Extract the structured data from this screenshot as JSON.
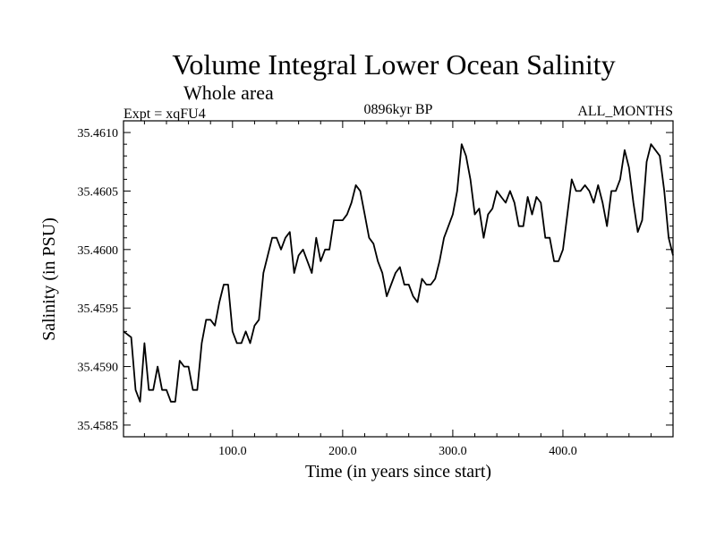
{
  "chart_data": {
    "type": "line",
    "title": "Volume Integral Lower Ocean Salinity",
    "subtitle": "Whole area",
    "header_left": "Expt = xqFU4",
    "header_center": "0896kyr BP",
    "header_right": "ALL_MONTHS",
    "xlabel": "Time (in years since start)",
    "ylabel": "Salinity (in PSU)",
    "xlim": [
      1,
      500
    ],
    "ylim": [
      35.4584,
      35.4611
    ],
    "xticks": [
      100,
      200,
      300,
      400
    ],
    "xtick_labels": [
      "100.0",
      "200.0",
      "300.0",
      "400.0"
    ],
    "yticks": [
      35.4585,
      35.459,
      35.4595,
      35.46,
      35.4605,
      35.461
    ],
    "ytick_labels": [
      "35.4585",
      "35.4590",
      "35.4595",
      "35.4600",
      "35.4605",
      "35.4610"
    ],
    "series": [
      {
        "name": "Salinity",
        "x": [
          1,
          8,
          12,
          16,
          20,
          24,
          28,
          32,
          36,
          40,
          44,
          48,
          52,
          56,
          60,
          64,
          68,
          72,
          76,
          80,
          84,
          88,
          92,
          96,
          100,
          104,
          108,
          112,
          116,
          120,
          124,
          128,
          132,
          136,
          140,
          144,
          148,
          152,
          156,
          160,
          164,
          168,
          172,
          176,
          180,
          184,
          188,
          192,
          196,
          200,
          204,
          208,
          212,
          216,
          220,
          224,
          228,
          232,
          236,
          240,
          244,
          248,
          252,
          256,
          260,
          264,
          268,
          272,
          276,
          280,
          284,
          288,
          292,
          296,
          300,
          304,
          308,
          312,
          316,
          320,
          324,
          328,
          332,
          336,
          340,
          344,
          348,
          352,
          356,
          360,
          364,
          368,
          372,
          376,
          380,
          384,
          388,
          392,
          396,
          400,
          404,
          408,
          412,
          416,
          420,
          424,
          428,
          432,
          436,
          440,
          444,
          448,
          452,
          456,
          460,
          464,
          468,
          472,
          476,
          480,
          484,
          488,
          492,
          496,
          500
        ],
        "y": [
          35.4593,
          35.45925,
          35.4588,
          35.4587,
          35.4592,
          35.4588,
          35.4588,
          35.459,
          35.4588,
          35.4588,
          35.4587,
          35.4587,
          35.45905,
          35.459,
          35.459,
          35.4588,
          35.4588,
          35.4592,
          35.4594,
          35.4594,
          35.45935,
          35.45955,
          35.4597,
          35.4597,
          35.4593,
          35.4592,
          35.4592,
          35.4593,
          35.4592,
          35.45935,
          35.4594,
          35.4598,
          35.45995,
          35.4601,
          35.4601,
          35.46,
          35.4601,
          35.46015,
          35.4598,
          35.45995,
          35.46,
          35.4599,
          35.4598,
          35.4601,
          35.4599,
          35.46,
          35.46,
          35.46025,
          35.46025,
          35.46025,
          35.4603,
          35.4604,
          35.46055,
          35.4605,
          35.4603,
          35.4601,
          35.46005,
          35.4599,
          35.4598,
          35.4596,
          35.4597,
          35.4598,
          35.45985,
          35.4597,
          35.4597,
          35.4596,
          35.45955,
          35.45975,
          35.4597,
          35.4597,
          35.45975,
          35.4599,
          35.4601,
          35.4602,
          35.4603,
          35.4605,
          35.4609,
          35.4608,
          35.4606,
          35.4603,
          35.46035,
          35.4601,
          35.4603,
          35.46035,
          35.4605,
          35.46045,
          35.4604,
          35.4605,
          35.4604,
          35.4602,
          35.4602,
          35.46045,
          35.4603,
          35.46045,
          35.4604,
          35.4601,
          35.4601,
          35.4599,
          35.4599,
          35.46,
          35.4603,
          35.4606,
          35.4605,
          35.4605,
          35.46055,
          35.4605,
          35.4604,
          35.46055,
          35.4604,
          35.4602,
          35.4605,
          35.4605,
          35.4606,
          35.46085,
          35.4607,
          35.4604,
          35.46015,
          35.46025,
          35.46075,
          35.4609,
          35.46085,
          35.4608,
          35.4605,
          35.4601,
          35.45995
        ]
      }
    ]
  }
}
